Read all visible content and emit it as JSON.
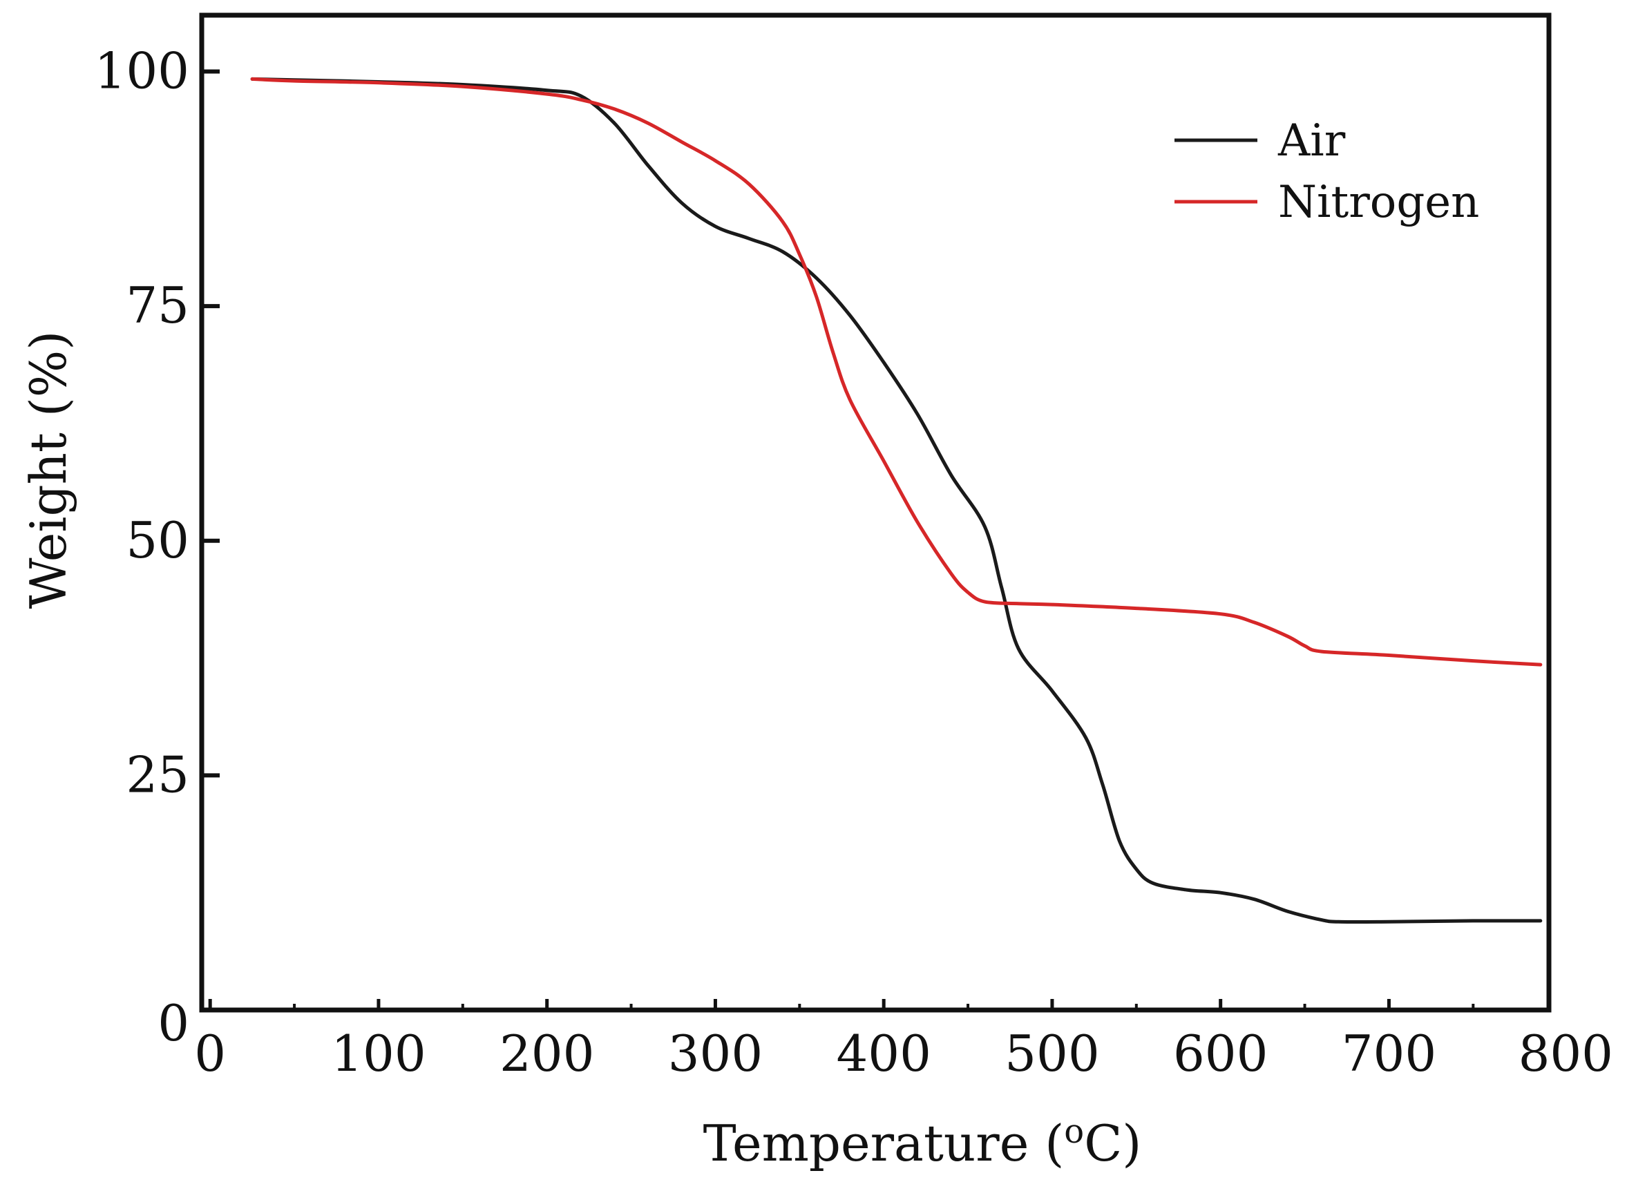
{
  "chart_data": {
    "type": "line",
    "title": "",
    "xlabel": "Temperature (",
    "xlabel_sup": "o",
    "xlabel_unit": "C)",
    "ylabel": "Weight (%)",
    "xlim": [
      -5,
      795
    ],
    "ylim": [
      0,
      106
    ],
    "xticks": [
      0,
      100,
      200,
      300,
      400,
      500,
      600,
      700,
      800
    ],
    "xtick_labels": [
      "0",
      "100",
      "200",
      "300",
      "400",
      "500",
      "600",
      "700",
      "800"
    ],
    "yticks": [
      0,
      25,
      50,
      75,
      100
    ],
    "ytick_labels": [
      "0",
      "25",
      "50",
      "75",
      "100"
    ],
    "legend_position": "top-right",
    "grid": false,
    "series": [
      {
        "name": "Air",
        "color": "#1a1a1a",
        "x": [
          25,
          50,
          100,
          150,
          200,
          220,
          240,
          260,
          280,
          300,
          320,
          340,
          360,
          380,
          400,
          420,
          440,
          460,
          470,
          480,
          500,
          520,
          530,
          540,
          550,
          560,
          580,
          600,
          620,
          640,
          660,
          670,
          700,
          750,
          790
        ],
        "y": [
          99.2,
          99.1,
          98.9,
          98.6,
          98.0,
          97.4,
          94.5,
          90.0,
          86.0,
          83.5,
          82.2,
          80.8,
          78.0,
          74.0,
          69.0,
          63.5,
          57.0,
          51.5,
          45.0,
          38.5,
          34.0,
          29.0,
          24.0,
          18.0,
          15.0,
          13.5,
          12.8,
          12.5,
          11.8,
          10.5,
          9.6,
          9.4,
          9.4,
          9.5,
          9.5
        ]
      },
      {
        "name": "Nitrogen",
        "color": "#d62728",
        "x": [
          25,
          50,
          100,
          150,
          200,
          220,
          240,
          260,
          280,
          300,
          320,
          340,
          350,
          360,
          370,
          380,
          400,
          420,
          440,
          450,
          460,
          480,
          500,
          550,
          600,
          620,
          640,
          650,
          660,
          700,
          750,
          790
        ],
        "y": [
          99.2,
          99.0,
          98.8,
          98.4,
          97.6,
          97.0,
          96.0,
          94.5,
          92.5,
          90.5,
          88.0,
          84.0,
          80.5,
          76.0,
          70.0,
          65.0,
          58.5,
          52.0,
          46.5,
          44.5,
          43.5,
          43.3,
          43.2,
          42.8,
          42.2,
          41.3,
          39.8,
          38.8,
          38.2,
          37.8,
          37.2,
          36.8
        ]
      }
    ]
  }
}
